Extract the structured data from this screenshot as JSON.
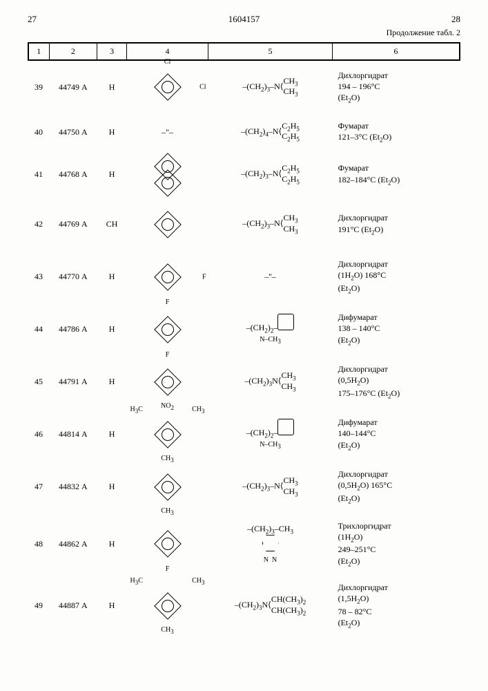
{
  "header": {
    "left_page": "27",
    "doc_number": "1604157",
    "right_page": "28"
  },
  "continuation": "Продолжение табл. 2",
  "columns": [
    "1",
    "2",
    "3",
    "4",
    "5",
    "6"
  ],
  "rows": [
    {
      "n": "39",
      "code": "44749 А",
      "r1": "Н",
      "r2_top": "Cl",
      "r2_right": "Cl",
      "r2_kind": "ring",
      "r3_html": "–(CH<sub>2</sub>)<sub>3</sub>–N&#10216;<span style='display:inline-block;vertical-align:middle;line-height:1'>CH<sub>3</sub><br>CH<sub>3</sub></span>",
      "note": "Дихлоргидрат<br>194 – 196°C<br>(Et<sub>2</sub>O)"
    },
    {
      "n": "40",
      "code": "44750 А",
      "r1": "Н",
      "r2_kind": "ditto",
      "r3_html": "–(CH<sub>2</sub>)<sub>4</sub>–N&#10216;<span style='display:inline-block;vertical-align:middle;line-height:1'>C<sub>2</sub>H<sub>5</sub><br>C<sub>2</sub>H<sub>5</sub></span>",
      "note": "Фумарат<br>121–3°C (Et<sub>2</sub>O)"
    },
    {
      "n": "41",
      "code": "44768 А",
      "r1": "Н",
      "r2_kind": "biphenyl",
      "r3_html": "–(CH<sub>2</sub>)<sub>3</sub>–N&#10216;<span style='display:inline-block;vertical-align:middle;line-height:1'>C<sub>2</sub>H<sub>5</sub><br>C<sub>2</sub>H<sub>5</sub></span>",
      "note": "Фумарат<br>182–184°C (Et<sub>2</sub>O)"
    },
    {
      "n": "42",
      "code": "44769 А",
      "r1": "СН",
      "r2_kind": "ring",
      "r3_html": "–(CH<sub>2</sub>)<sub>3</sub>–N&#10216;<span style='display:inline-block;vertical-align:middle;line-height:1'>CH<sub>3</sub><br>CH<sub>3</sub></span>",
      "note": "Дихлоргидрат<br>191°C (Et<sub>2</sub>O)"
    },
    {
      "n": "43",
      "code": "44770 А",
      "r1": "Н",
      "r2_kind": "ring",
      "r2_right": "F",
      "r2_bottom": "F",
      "r3_html": "–''–",
      "note": "Дихлоргидрат<br>(1H<sub>2</sub>O) 168°C<br>(Et<sub>2</sub>O)"
    },
    {
      "n": "44",
      "code": "44786 А",
      "r1": "Н",
      "r2_kind": "ring",
      "r2_bottom": "F",
      "r3_html": "–(CH<sub>2</sub>)<sub>2</sub>–<span class='penta'></span><br><span style='font-size:10px'>N–CH<sub>3</sub></span>",
      "note": "Дифумарат<br>138 – 140°C<br>(Et<sub>2</sub>O)"
    },
    {
      "n": "45",
      "code": "44791 А",
      "r1": "Н",
      "r2_kind": "ring",
      "r2_bottom": "NO<sub>2</sub>",
      "r3_html": "–(CH<sub>2</sub>)<sub>3</sub>N&#10216;<span style='display:inline-block;vertical-align:middle;line-height:1'>CH<sub>3</sub><br>CH<sub>3</sub></span>",
      "note": "Дихлоргидрат<br>(0,5H<sub>2</sub>O)<br>175–176°C (Et<sub>2</sub>O)"
    },
    {
      "n": "46",
      "code": "44814 А",
      "r1": "Н",
      "r2_kind": "mesityl",
      "r3_html": "–(CH<sub>2</sub>)<sub>2</sub>–<span class='penta'></span><br><span style='font-size:10px'>N–CH<sub>3</sub></span>",
      "note": "Дифумарат<br>140–144°C<br>(Et<sub>2</sub>O)"
    },
    {
      "n": "47",
      "code": "44832 А",
      "r1": "Н",
      "r2_kind": "ring",
      "r2_bottom": "CH<sub>3</sub>",
      "r3_html": "–(CH<sub>2</sub>)<sub>3</sub>–N&#10216;<span style='display:inline-block;vertical-align:middle;line-height:1'>CH<sub>3</sub><br>CH<sub>3</sub></span>",
      "note": "Дихлоргидрат<br>(0,5H<sub>2</sub>O) 165°C<br>(Et<sub>2</sub>O)"
    },
    {
      "n": "48",
      "code": "44862 А",
      "r1": "Н",
      "r2_kind": "ring",
      "r2_bottom": "F",
      "r3_html": "–(CH<sub>2</sub>)<sub>3</sub>–CH<sub>3</sub><br><span class='hex6'></span><br><span style='font-size:10px'>N&nbsp;&nbsp;N</span>",
      "note": "Трихлоргидрат<br>(1H<sub>2</sub>O)<br>249–251°C<br>(Et<sub>2</sub>O)"
    },
    {
      "n": "49",
      "code": "44887 А",
      "r1": "Н",
      "r2_kind": "mesityl",
      "r3_html": "–(CH<sub>2</sub>)<sub>3</sub>N&#10216;<span style='display:inline-block;vertical-align:middle;line-height:1'>CH(CH<sub>3</sub>)<sub>2</sub><br>CH(CH<sub>3</sub>)<sub>2</sub></span>",
      "note": "Дихлоргидрат<br>(1,5H<sub>2</sub>O)<br>78 – 82°C<br>(Et<sub>2</sub>O)"
    }
  ]
}
